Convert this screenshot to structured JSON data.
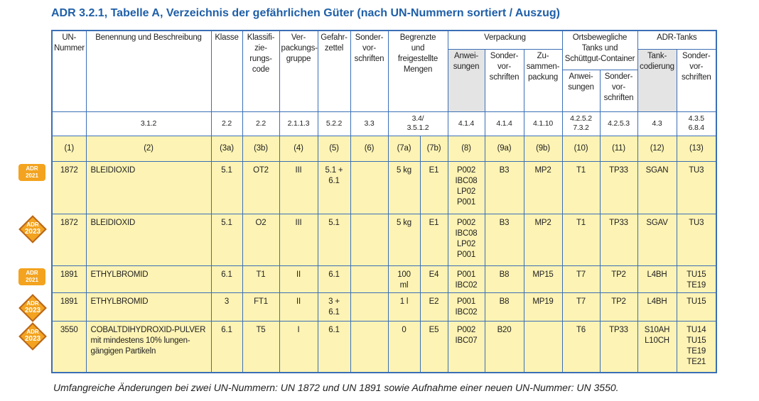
{
  "title": "ADR 3.2.1, Tabelle A, Verzeichnis der gefährlichen Güter (nach UN-Nummern sortiert / Auszug)",
  "footnote": "Umfangreiche Änderungen bei zwei UN-Nummern: UN 1872 und UN 1891 sowie Aufnahme einer neuen UN-Nummer: UN 3550.",
  "table": {
    "head": {
      "un": "UN-\nNummer",
      "name": "Benennung und Beschreibung",
      "klasse": "Klasse",
      "code": "Klassifi-\nzie-\nrungs-\ncode",
      "gruppe": "Ver-\npackungs-\ngruppe",
      "zettel": "Gefahr-\nzettel",
      "sv": "Sonder-\nvor-\nschriften",
      "mengen": "Begrenzte\nund\nfreigestellte\nMengen",
      "verpackung": "Verpackung",
      "anw": "Anwei-\nsungen",
      "vp_sv": "Sonder-\nvor-\nschriften",
      "zus": "Zu-\nsammen-\npackung",
      "tanks": "Ortsbewegliche\nTanks und\nSchüttgut-Container",
      "t_anw": "Anwei-\nsungen",
      "t_sv": "Sonder-\nvor-\nschriften",
      "adr_tanks": "ADR-Tanks",
      "codierung": "Tank-\ncodierung",
      "a_sv": "Sonder-\nvor-\nschriften"
    },
    "references": [
      "3.1.2",
      "2.2",
      "2.2",
      "2.1.1.3",
      "5.2.2",
      "3.3",
      "3.4/\n3.5.1.2",
      "4.1.4",
      "4.1.4",
      "4.1.10",
      "4.2.5.2\n7.3.2",
      "4.2.5.3",
      "4.3",
      "4.3.5\n6.8.4"
    ],
    "numbers": [
      "(1)",
      "(2)",
      "(3a)",
      "(3b)",
      "(4)",
      "(5)",
      "(6)",
      "(7a)",
      "(7b)",
      "(8)",
      "(9a)",
      "(9b)",
      "(10)",
      "(11)",
      "(12)",
      "(13)"
    ],
    "rows": [
      {
        "badge": {
          "text": "ADR",
          "year": "2021",
          "shape": "label"
        },
        "cells": [
          "1872",
          "BLEIDIOXID",
          "5.1",
          "OT2",
          "III",
          "5.1 +\n6.1",
          null,
          "5 kg",
          "E1",
          "P002\nIBC08\nLP02\nP001",
          "B3",
          "MP2",
          "T1",
          "TP33",
          "SGAN",
          "TU3"
        ]
      },
      {
        "badge": {
          "text": "ADR",
          "year": "2023",
          "shape": "diamond"
        },
        "cells": [
          "1872",
          "BLEIDIOXID",
          "5.1",
          "O2",
          "III",
          "5.1",
          null,
          "5 kg",
          "E1",
          "P002\nIBC08\nLP02\nP001",
          "B3",
          "MP2",
          "T1",
          "TP33",
          "SGAV",
          "TU3"
        ]
      },
      {
        "badge": {
          "text": "ADR",
          "year": "2021",
          "shape": "label"
        },
        "cells": [
          "1891",
          "ETHYLBROMID",
          "6.1",
          "T1",
          "II",
          "6.1",
          null,
          "100\nml",
          "E4",
          "P001\nIBC02",
          "B8",
          "MP15",
          "T7",
          "TP2",
          "L4BH",
          "TU15\nTE19"
        ]
      },
      {
        "badge": {
          "text": "ADR",
          "year": "2023",
          "shape": "diamond"
        },
        "cells": [
          "1891",
          "ETHYLBROMID",
          "3",
          "FT1",
          "II",
          "3 +\n6.1",
          null,
          "1 l",
          "E2",
          "P001\nIBC02",
          "B8",
          "MP19",
          "T7",
          "TP2",
          "L4BH",
          "TU15"
        ]
      },
      {
        "badge": {
          "text": "ADR",
          "year": "2023",
          "shape": "diamond"
        },
        "cells": [
          "3550",
          "COBALTDIHYDROXID-PULVER\nmit mindestens 10% lungen-\ngängigen Partikeln",
          "6.1",
          "T5",
          "I",
          "6.1",
          null,
          "0",
          "E5",
          "P002\nIBC07",
          "B20",
          null,
          "T6",
          "TP33",
          "S10AH\nL10CH",
          "TU14\nTU15\nTE19\nTE21"
        ]
      }
    ]
  }
}
